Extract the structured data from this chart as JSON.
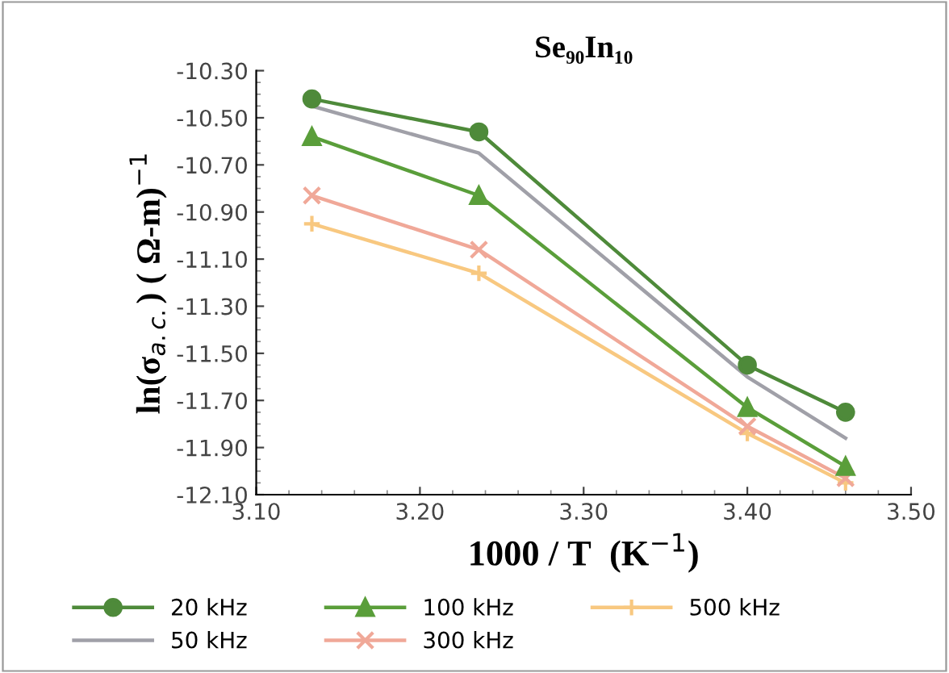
{
  "chart_data": {
    "type": "line",
    "title": "Se₉₀In₁₀",
    "xlabel": "1000 / T  (K$^{−1}$)",
    "ylabel": "ln(σ$_{a.c.}$) ( Ω-m)$^{−1}$",
    "x": [
      3.134,
      3.236,
      3.4,
      3.46
    ],
    "series": [
      {
        "name": "20 kHz",
        "color": "#4e8a3a",
        "marker": "circle",
        "values": [
          -10.42,
          -10.56,
          -11.55,
          -11.75
        ]
      },
      {
        "name": "50 kHz",
        "color": "#a0a0a8",
        "marker": "none",
        "values": [
          -10.45,
          -10.65,
          -11.6,
          -11.86
        ]
      },
      {
        "name": "100 kHz",
        "color": "#5a9e3a",
        "marker": "triangle",
        "values": [
          -10.58,
          -10.83,
          -11.73,
          -11.98
        ]
      },
      {
        "name": "300 kHz",
        "color": "#f0a898",
        "marker": "cross",
        "values": [
          -10.83,
          -11.06,
          -11.81,
          -12.03
        ]
      },
      {
        "name": "500 kHz",
        "color": "#f8c880",
        "marker": "plus",
        "values": [
          -10.95,
          -11.16,
          -11.84,
          -12.05
        ]
      }
    ],
    "xlim": [
      3.1,
      3.5
    ],
    "xticks": [
      {
        "value": 3.1,
        "label": "3.10"
      },
      {
        "value": 3.2,
        "label": "3.20"
      },
      {
        "value": 3.3,
        "label": "3.30"
      },
      {
        "value": 3.4,
        "label": "3.40"
      },
      {
        "value": 3.5,
        "label": "3.50"
      }
    ],
    "ylim": [
      -12.1,
      -10.3
    ],
    "yticks": [
      {
        "value": -12.1,
        "label": "-12.10"
      },
      {
        "value": -11.9,
        "label": "-11.90"
      },
      {
        "value": -11.7,
        "label": "-11.70"
      },
      {
        "value": -11.5,
        "label": "-11.50"
      },
      {
        "value": -11.3,
        "label": "-11.30"
      },
      {
        "value": -11.1,
        "label": "-11.10"
      },
      {
        "value": -10.9,
        "label": "-10.90"
      },
      {
        "value": -10.7,
        "label": "-10.70"
      },
      {
        "value": -10.5,
        "label": "-10.50"
      },
      {
        "value": -10.3,
        "label": "-10.30"
      }
    ],
    "grid": false,
    "legend": "bottom"
  }
}
